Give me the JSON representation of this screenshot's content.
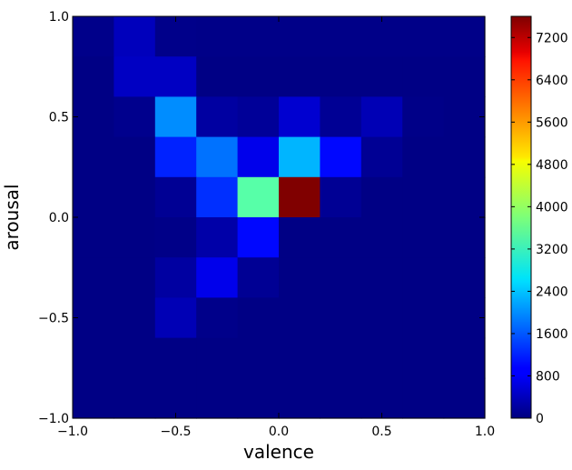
{
  "chart_data": {
    "type": "heatmap",
    "xlabel": "valence",
    "ylabel": "arousal",
    "xlim": [
      -1.0,
      1.0
    ],
    "ylim": [
      -1.0,
      1.0
    ],
    "bins": 10,
    "x_ticks": [
      -1.0,
      -0.5,
      0.0,
      0.5,
      1.0
    ],
    "x_tick_labels": [
      "−1.0",
      "−0.5",
      "0.0",
      "0.5",
      "1.0"
    ],
    "y_ticks": [
      -1.0,
      -0.5,
      0.0,
      0.5,
      1.0
    ],
    "y_tick_labels": [
      "−1.0",
      "−0.5",
      "0.0",
      "0.5",
      "1.0"
    ],
    "colormap": "jet",
    "color_min": 0,
    "color_max": 7600,
    "colorbar_ticks": [
      0,
      800,
      1600,
      2400,
      3200,
      4000,
      4800,
      5600,
      6400,
      7200
    ],
    "colorbar_tick_labels": [
      "0",
      "800",
      "1600",
      "2400",
      "3200",
      "4000",
      "4800",
      "5600",
      "6400",
      "7200"
    ],
    "row_order": "top-to-bottom (arousal 1.0 to -1.0), columns left-to-right (valence -1.0 to 1.0)",
    "counts": [
      [
        80,
        450,
        80,
        60,
        60,
        60,
        60,
        60,
        60,
        60
      ],
      [
        40,
        500,
        500,
        40,
        40,
        40,
        40,
        40,
        40,
        40
      ],
      [
        40,
        100,
        2000,
        250,
        180,
        600,
        150,
        400,
        60,
        40
      ],
      [
        40,
        40,
        1200,
        1800,
        800,
        2300,
        1000,
        150,
        40,
        40
      ],
      [
        40,
        40,
        150,
        1300,
        3500,
        7600,
        150,
        40,
        40,
        40
      ],
      [
        40,
        40,
        60,
        300,
        1000,
        40,
        40,
        40,
        40,
        40
      ],
      [
        40,
        40,
        250,
        800,
        150,
        40,
        40,
        40,
        40,
        40
      ],
      [
        40,
        40,
        400,
        80,
        40,
        40,
        40,
        40,
        40,
        40
      ],
      [
        40,
        40,
        40,
        40,
        40,
        40,
        40,
        40,
        40,
        40
      ],
      [
        40,
        40,
        40,
        40,
        40,
        40,
        40,
        40,
        40,
        40
      ]
    ]
  }
}
